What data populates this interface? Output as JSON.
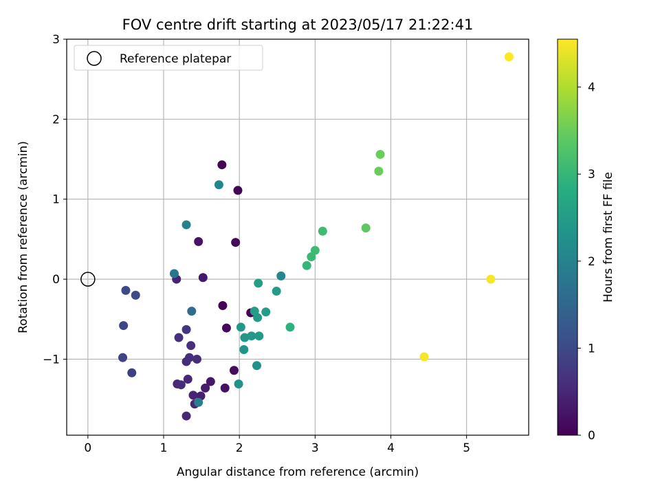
{
  "chart_data": {
    "type": "scatter",
    "title": "FOV centre drift starting at 2023/05/17 21:22:41",
    "xlabel": "Angular distance from reference (arcmin)",
    "ylabel": "Rotation from reference (arcmin)",
    "xlim": [
      -0.28,
      5.82
    ],
    "ylim": [
      -1.95,
      3.0
    ],
    "x_ticks": [
      0,
      1,
      2,
      3,
      4,
      5
    ],
    "x_tick_labels": [
      "0",
      "1",
      "2",
      "3",
      "4",
      "5"
    ],
    "y_ticks": [
      -1,
      0,
      1,
      2,
      3
    ],
    "y_tick_labels": [
      "−1",
      "0",
      "1",
      "2",
      "3"
    ],
    "grid": true,
    "legend": {
      "position": "top-left",
      "entries": [
        {
          "label": "Reference platepar",
          "marker": "open-circle",
          "x": 0,
          "y": 0
        }
      ]
    },
    "colorbar": {
      "label": "Hours from first FF file",
      "colormap": "viridis",
      "range": [
        0,
        4.55
      ],
      "ticks": [
        0,
        1,
        2,
        3,
        4
      ],
      "tick_labels": [
        "0",
        "1",
        "2",
        "3",
        "4"
      ]
    },
    "points": [
      {
        "x": 1.77,
        "y": 1.43,
        "c": 0.05
      },
      {
        "x": 1.98,
        "y": 1.11,
        "c": 0.05
      },
      {
        "x": 1.95,
        "y": 0.46,
        "c": 0.1
      },
      {
        "x": 1.46,
        "y": 0.47,
        "c": 0.25
      },
      {
        "x": 1.52,
        "y": 0.02,
        "c": 0.3
      },
      {
        "x": 1.17,
        "y": 0.0,
        "c": 0.45
      },
      {
        "x": 1.78,
        "y": -0.33,
        "c": 0.05
      },
      {
        "x": 2.15,
        "y": -0.42,
        "c": 0.05
      },
      {
        "x": 1.83,
        "y": -0.61,
        "c": 0.1
      },
      {
        "x": 1.93,
        "y": -1.14,
        "c": 0.15
      },
      {
        "x": 1.81,
        "y": -1.36,
        "c": 0.2
      },
      {
        "x": 1.62,
        "y": -1.28,
        "c": 0.3
      },
      {
        "x": 1.55,
        "y": -1.36,
        "c": 0.35
      },
      {
        "x": 1.49,
        "y": -1.46,
        "c": 0.4
      },
      {
        "x": 1.39,
        "y": -1.45,
        "c": 0.45
      },
      {
        "x": 1.41,
        "y": -1.56,
        "c": 0.5
      },
      {
        "x": 1.32,
        "y": -1.25,
        "c": 0.5
      },
      {
        "x": 1.18,
        "y": -1.31,
        "c": 0.5
      },
      {
        "x": 1.23,
        "y": -1.32,
        "c": 0.55
      },
      {
        "x": 1.3,
        "y": -1.71,
        "c": 0.5
      },
      {
        "x": 1.3,
        "y": -1.03,
        "c": 0.55
      },
      {
        "x": 1.34,
        "y": -0.98,
        "c": 0.6
      },
      {
        "x": 1.44,
        "y": -1.0,
        "c": 0.55
      },
      {
        "x": 1.36,
        "y": -0.83,
        "c": 0.6
      },
      {
        "x": 1.2,
        "y": -0.73,
        "c": 0.6
      },
      {
        "x": 1.3,
        "y": -0.63,
        "c": 0.7
      },
      {
        "x": 0.58,
        "y": -1.17,
        "c": 0.85
      },
      {
        "x": 0.46,
        "y": -0.98,
        "c": 0.9
      },
      {
        "x": 0.47,
        "y": -0.58,
        "c": 0.95
      },
      {
        "x": 0.5,
        "y": -0.14,
        "c": 1.0
      },
      {
        "x": 0.63,
        "y": -0.2,
        "c": 1.05
      },
      {
        "x": 1.37,
        "y": -0.4,
        "c": 1.6
      },
      {
        "x": 1.14,
        "y": 0.07,
        "c": 1.75
      },
      {
        "x": 1.46,
        "y": -1.54,
        "c": 1.95
      },
      {
        "x": 1.3,
        "y": 0.68,
        "c": 2.0
      },
      {
        "x": 1.73,
        "y": 1.18,
        "c": 2.05
      },
      {
        "x": 2.55,
        "y": 0.04,
        "c": 2.1
      },
      {
        "x": 1.99,
        "y": -1.31,
        "c": 2.3
      },
      {
        "x": 2.23,
        "y": -1.08,
        "c": 2.3
      },
      {
        "x": 2.06,
        "y": -0.88,
        "c": 2.35
      },
      {
        "x": 2.07,
        "y": -0.73,
        "c": 2.4
      },
      {
        "x": 2.16,
        "y": -0.71,
        "c": 2.4
      },
      {
        "x": 2.26,
        "y": -0.71,
        "c": 2.45
      },
      {
        "x": 2.02,
        "y": -0.6,
        "c": 2.4
      },
      {
        "x": 2.24,
        "y": -0.48,
        "c": 2.45
      },
      {
        "x": 2.2,
        "y": -0.4,
        "c": 2.5
      },
      {
        "x": 2.35,
        "y": -0.41,
        "c": 2.5
      },
      {
        "x": 2.25,
        "y": -0.05,
        "c": 2.55
      },
      {
        "x": 2.49,
        "y": -0.15,
        "c": 2.5
      },
      {
        "x": 2.67,
        "y": -0.6,
        "c": 2.9
      },
      {
        "x": 2.89,
        "y": 0.17,
        "c": 3.0
      },
      {
        "x": 2.95,
        "y": 0.28,
        "c": 3.05
      },
      {
        "x": 3.0,
        "y": 0.36,
        "c": 3.1
      },
      {
        "x": 3.1,
        "y": 0.6,
        "c": 3.1
      },
      {
        "x": 3.67,
        "y": 0.64,
        "c": 3.4
      },
      {
        "x": 3.84,
        "y": 1.35,
        "c": 3.5
      },
      {
        "x": 3.86,
        "y": 1.56,
        "c": 3.5
      },
      {
        "x": 4.44,
        "y": -0.97,
        "c": 4.5
      },
      {
        "x": 5.32,
        "y": 0.0,
        "c": 4.5
      },
      {
        "x": 5.56,
        "y": 2.78,
        "c": 4.55
      }
    ]
  }
}
